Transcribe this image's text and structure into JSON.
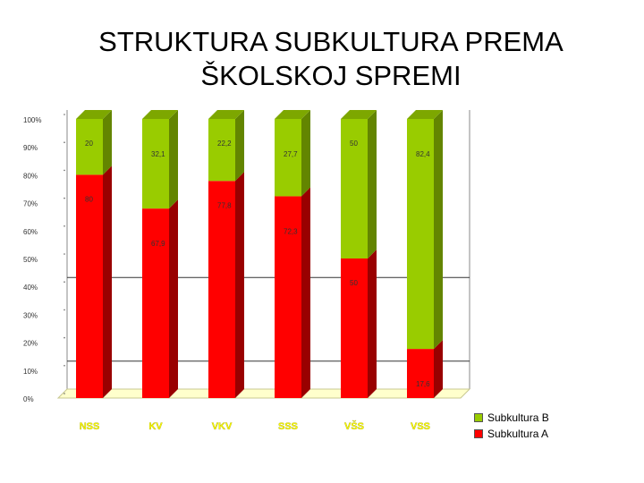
{
  "slide": {
    "title_line1": "STRUKTURA SUBKULTURA PREMA",
    "title_line2": "ŠKOLSKOJ SPREMI"
  },
  "chart_data": {
    "type": "bar",
    "stacked": true,
    "percent": true,
    "categories": [
      "NSS",
      "KV",
      "VKV",
      "SSS",
      "VŠS",
      "VSS"
    ],
    "series": [
      {
        "name": "Subkultura A",
        "color": "#ff0000",
        "values": [
          80,
          67.9,
          77.8,
          72.3,
          50,
          17.6
        ],
        "labels": [
          "80",
          "67,9",
          "77,8",
          "72,3",
          "50",
          "17,6"
        ]
      },
      {
        "name": "Subkultura B",
        "color": "#99cc00",
        "values": [
          20,
          32.1,
          22.2,
          27.7,
          50,
          82.4
        ],
        "labels": [
          "20",
          "32,1",
          "22,2",
          "27,7",
          "50",
          "82,4"
        ]
      }
    ],
    "yticks": [
      "0%",
      "10%",
      "20%",
      "30%",
      "40%",
      "50%",
      "60%",
      "70%",
      "80%",
      "90%",
      "100%"
    ],
    "ylim": [
      0,
      100
    ],
    "legend_position": "bottom-right",
    "category_label_color": "#ffff00"
  }
}
